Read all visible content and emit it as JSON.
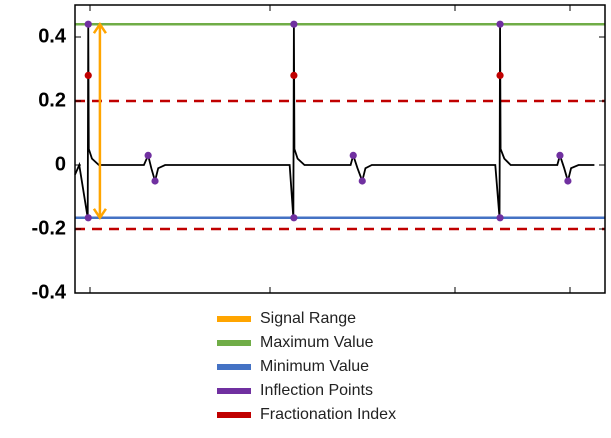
{
  "chart_data": {
    "type": "line",
    "xlim": [
      0,
      100
    ],
    "ylim": [
      -0.4,
      0.5
    ],
    "yticks": [
      0.4,
      0.2,
      0,
      -0.2,
      -0.4
    ],
    "signal": {
      "color": "#000000",
      "x": [
        0,
        0.8,
        2.4,
        2.5,
        2.6,
        3.2,
        4.5,
        13,
        13.8,
        14.4,
        15.1,
        15.7,
        17,
        40.5,
        41.2,
        41.3,
        41.4,
        42,
        43.3,
        52,
        52.5,
        53.3,
        54.2,
        54.8,
        56,
        79.3,
        80.1,
        80.2,
        80.3,
        81,
        82.2,
        91,
        91.5,
        92.3,
        93,
        93.6,
        95,
        98
      ],
      "values": [
        -0.03,
        0,
        -0.165,
        0.44,
        0.05,
        0.02,
        0,
        0,
        0.03,
        -0.01,
        -0.05,
        -0.01,
        0,
        0,
        -0.165,
        0.44,
        0.05,
        0.02,
        0,
        0,
        0.03,
        -0.01,
        -0.05,
        -0.01,
        0,
        0,
        -0.165,
        0.44,
        0.05,
        0.02,
        0,
        0,
        0.03,
        -0.01,
        -0.05,
        -0.01,
        0,
        0
      ]
    },
    "series": [
      {
        "name": "Signal Range",
        "color": "#ffa500",
        "kind": "arrow",
        "x": [
          4.7,
          4.7
        ],
        "values": [
          -0.165,
          0.44
        ]
      },
      {
        "name": "Maximum Value",
        "color": "#70ad47",
        "kind": "hline",
        "values": [
          0.44
        ]
      },
      {
        "name": "Minimum Value",
        "color": "#4472c4",
        "kind": "hline",
        "values": [
          -0.165
        ]
      },
      {
        "name": "Inflection Points",
        "color": "#7030a0",
        "kind": "points",
        "x": [
          2.5,
          2.5,
          13.8,
          15.1,
          41.3,
          41.3,
          52.5,
          54.2,
          80.2,
          80.2,
          91.5,
          93
        ],
        "values": [
          0.44,
          -0.165,
          0.03,
          -0.05,
          0.44,
          -0.165,
          0.03,
          -0.05,
          0.44,
          -0.165,
          0.03,
          -0.05
        ]
      },
      {
        "name": "Fractionation Index",
        "color": "#c00000",
        "kind": "points",
        "x": [
          2.5,
          41.3,
          80.2
        ],
        "values": [
          0.28,
          0.28,
          0.28
        ],
        "thresholds": [
          0.2,
          -0.2
        ]
      }
    ]
  }
}
